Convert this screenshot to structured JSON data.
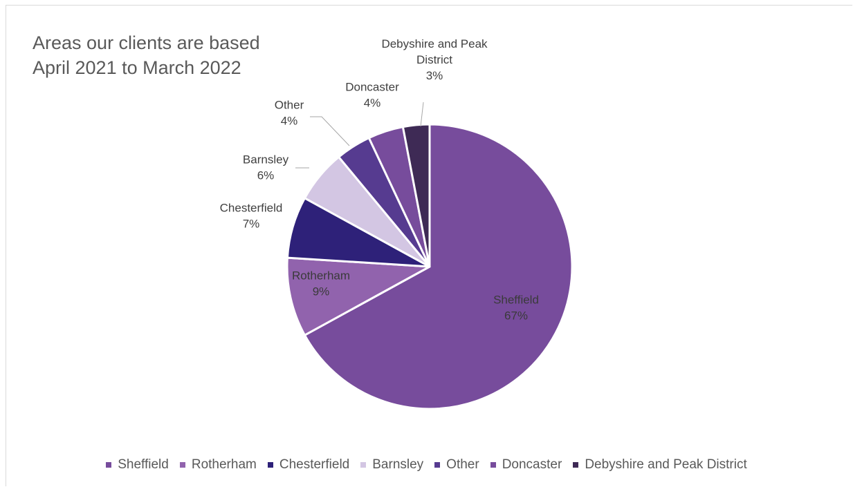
{
  "chart_data": {
    "type": "pie",
    "title_lines": [
      "Areas our clients are based",
      "April 2021 to March 2022"
    ],
    "categories": [
      "Sheffield",
      "Rotherham",
      "Chesterfield",
      "Barnsley",
      "Other",
      "Doncaster",
      "Debyshire and Peak District"
    ],
    "values": [
      67,
      9,
      7,
      6,
      4,
      4,
      3
    ],
    "value_labels": [
      "67%",
      "9%",
      "7%",
      "6%",
      "4%",
      "4%",
      "3%"
    ],
    "colors": [
      "#774c9c",
      "#9163ad",
      "#2e2179",
      "#d3c6e3",
      "#563b90",
      "#774c9c",
      "#3e2a55"
    ],
    "legend_position": "bottom"
  }
}
